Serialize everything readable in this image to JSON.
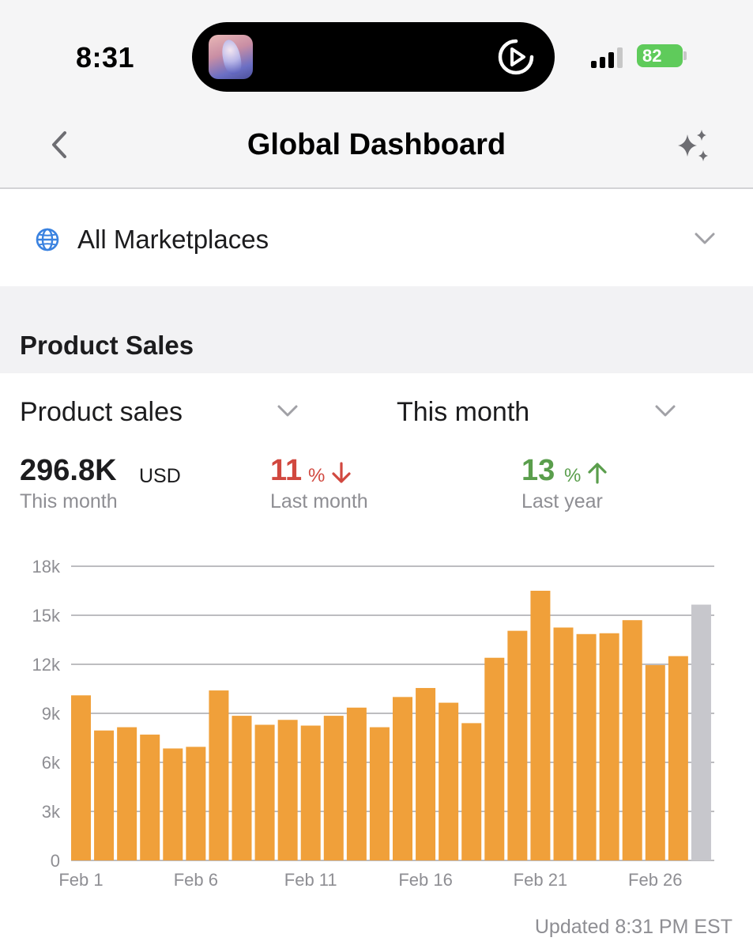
{
  "status_bar": {
    "time": "8:31",
    "battery": "82",
    "signal_icon": "signal-bars-icon",
    "media_icon": "play-circle-icon"
  },
  "nav": {
    "title": "Global Dashboard",
    "back_icon": "chevron-left-icon",
    "ai_icon": "sparkles-icon"
  },
  "marketplace": {
    "label": "All Marketplaces",
    "icon": "globe-icon"
  },
  "section": {
    "title": "Product Sales"
  },
  "selectors": {
    "metric": "Product sales",
    "period": "This month"
  },
  "stats": {
    "main": {
      "value": "296.8K",
      "unit": "USD",
      "caption": "This month"
    },
    "vs_last_month": {
      "value": "11",
      "unit": "%",
      "caption": "Last month",
      "direction": "down",
      "color": "#d1483f"
    },
    "vs_last_year": {
      "value": "13",
      "unit": "%",
      "caption": "Last year",
      "direction": "up",
      "color": "#5a9e4c"
    }
  },
  "chart_data": {
    "type": "bar",
    "categories": [
      "Feb 1",
      "Feb 2",
      "Feb 3",
      "Feb 4",
      "Feb 5",
      "Feb 6",
      "Feb 7",
      "Feb 8",
      "Feb 9",
      "Feb 10",
      "Feb 11",
      "Feb 12",
      "Feb 13",
      "Feb 14",
      "Feb 15",
      "Feb 16",
      "Feb 17",
      "Feb 18",
      "Feb 19",
      "Feb 20",
      "Feb 21",
      "Feb 22",
      "Feb 23",
      "Feb 24",
      "Feb 25",
      "Feb 26",
      "Feb 27",
      "Feb 28"
    ],
    "values": [
      10100,
      7950,
      8150,
      7700,
      6850,
      6950,
      10400,
      8850,
      8300,
      8600,
      8250,
      8850,
      9350,
      8150,
      10000,
      10550,
      9650,
      8400,
      12400,
      14050,
      16500,
      14250,
      13850,
      13900,
      14700,
      11950,
      12500,
      15650
    ],
    "bar_colors": [
      "#f0a03a",
      "#f0a03a",
      "#f0a03a",
      "#f0a03a",
      "#f0a03a",
      "#f0a03a",
      "#f0a03a",
      "#f0a03a",
      "#f0a03a",
      "#f0a03a",
      "#f0a03a",
      "#f0a03a",
      "#f0a03a",
      "#f0a03a",
      "#f0a03a",
      "#f0a03a",
      "#f0a03a",
      "#f0a03a",
      "#f0a03a",
      "#f0a03a",
      "#f0a03a",
      "#f0a03a",
      "#f0a03a",
      "#f0a03a",
      "#f0a03a",
      "#f0a03a",
      "#f0a03a",
      "#c7c7cc"
    ],
    "x_tick_labels": [
      "Feb 1",
      "Feb 6",
      "Feb 11",
      "Feb 16",
      "Feb 21",
      "Feb 26"
    ],
    "x_tick_index": [
      0,
      5,
      10,
      15,
      20,
      25
    ],
    "y_ticks": [
      0,
      3000,
      6000,
      9000,
      12000,
      15000,
      18000
    ],
    "y_tick_labels": [
      "0",
      "3k",
      "6k",
      "9k",
      "12k",
      "15k",
      "18k"
    ],
    "ylim": [
      0,
      18000
    ],
    "grid": true,
    "title": "",
    "xlabel": "",
    "ylabel": ""
  },
  "footer": {
    "updated": "Updated 8:31 PM EST"
  }
}
